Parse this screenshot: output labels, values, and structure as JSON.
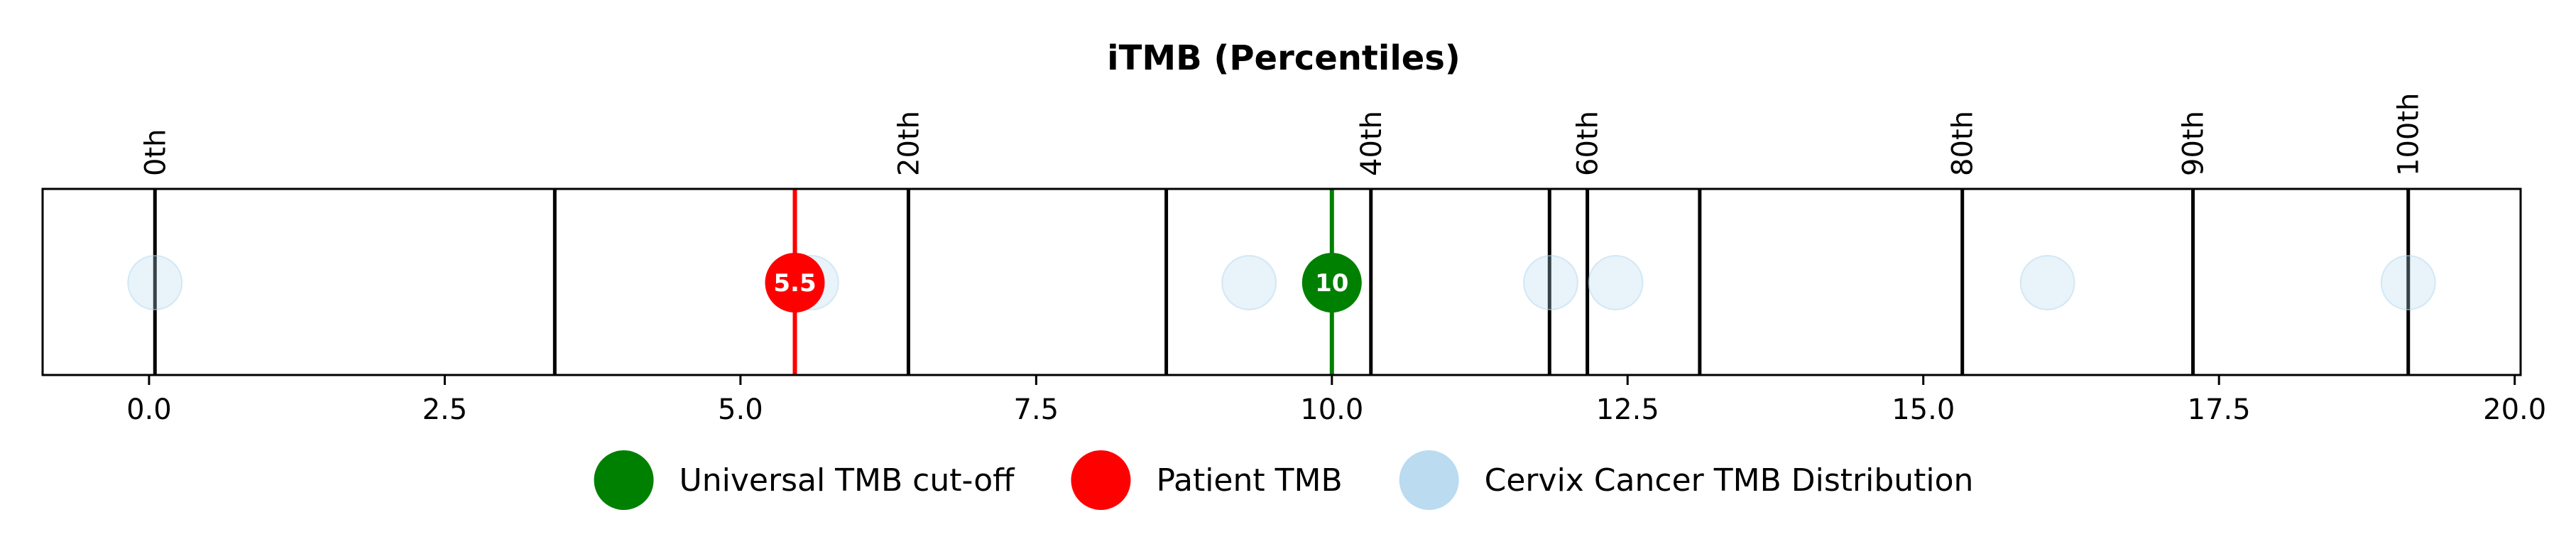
{
  "chart_data": {
    "type": "scatter",
    "title": "iTMB (Percentiles)",
    "xlabel": "",
    "ylabel": "",
    "xlim": [
      -0.9,
      20.05
    ],
    "x_ticks": [
      0.0,
      2.5,
      5.0,
      7.5,
      10.0,
      12.5,
      15.0,
      17.5,
      20.0
    ],
    "x_tick_labels": [
      "0.0",
      "2.5",
      "5.0",
      "7.5",
      "10.0",
      "12.5",
      "15.0",
      "17.5",
      "20.0"
    ],
    "grid": false,
    "percentile_lines": [
      0.05,
      3.43,
      6.42,
      8.6,
      10.33,
      11.84,
      12.16,
      13.11,
      15.33,
      17.28,
      19.1
    ],
    "percentile_labels": [
      {
        "label": "0th",
        "x": 0.05
      },
      {
        "label": "20th",
        "x": 6.42
      },
      {
        "label": "40th",
        "x": 10.33
      },
      {
        "label": "60th",
        "x": 12.16
      },
      {
        "label": "80th",
        "x": 15.33
      },
      {
        "label": "90th",
        "x": 17.28
      },
      {
        "label": "100th",
        "x": 19.1
      }
    ],
    "distribution_points": [
      0.05,
      5.6,
      9.3,
      11.85,
      12.4,
      16.05,
      19.1
    ],
    "patient_tmb": {
      "value": 5.46,
      "label": "5.5",
      "color": "#ff0000"
    },
    "cutoff_tmb": {
      "value": 10.0,
      "label": "10",
      "color": "#008000"
    },
    "distribution_color": "#b3d7ee",
    "legend": {
      "placement": "bottom-center",
      "entries": [
        {
          "label": "Universal TMB cut-off",
          "color": "#008000"
        },
        {
          "label": "Patient TMB",
          "color": "#ff0000"
        },
        {
          "label": "Cervix Cancer TMB Distribution",
          "color": "#b3d7ee"
        }
      ]
    }
  }
}
